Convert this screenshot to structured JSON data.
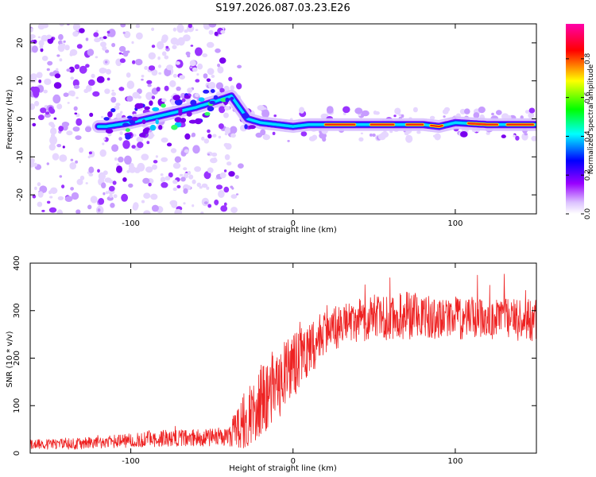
{
  "title": "S197.2026.087.03.23.E26",
  "chart_data": [
    {
      "type": "heatmap",
      "name": "spectrogram",
      "xlabel": "Height of straight line (km)",
      "ylabel": "Frequency (Hz)",
      "xlim": [
        -162,
        150
      ],
      "ylim": [
        -25,
        25
      ],
      "xticks": [
        -100,
        0,
        100
      ],
      "xtick_labels": [
        "-100",
        "0",
        "100"
      ],
      "yticks": [
        -20,
        -10,
        0,
        10,
        20
      ],
      "ytick_labels": [
        "-20",
        "-10",
        "0",
        "10",
        "20"
      ],
      "colorbar": {
        "label": "Normalized spectral amplitude",
        "range": [
          0,
          0.98
        ],
        "ticks": [
          0.0,
          0.2,
          0.4,
          0.6,
          0.8
        ],
        "tick_labels": [
          "0.0",
          "0.2",
          "0.4",
          "0.6",
          "0.8"
        ],
        "colors": [
          "#ffffff",
          "#9900ff",
          "#0000ff",
          "#00ffff",
          "#00ff00",
          "#ffff00",
          "#ff0000",
          "#ff00aa"
        ]
      },
      "ridge": {
        "description_x": [
          -115,
          -100,
          -80,
          -60,
          -45,
          -38,
          -33,
          -28,
          -20,
          -10,
          0,
          10,
          20,
          40,
          60,
          80,
          90,
          100,
          120,
          150
        ],
        "frequency_hz": [
          -2,
          -1,
          1,
          3,
          5,
          6,
          3,
          0,
          -1,
          -1.5,
          -2,
          -1.5,
          -1.5,
          -1.5,
          -1.5,
          -1.5,
          -2,
          -1,
          -1.5,
          -1.5
        ]
      }
    },
    {
      "type": "line",
      "name": "snr",
      "xlabel": "Height of straight line (km)",
      "ylabel": "SNR (10 * v/v)",
      "xlim": [
        -162,
        150
      ],
      "ylim": [
        0,
        400
      ],
      "xticks": [
        -100,
        0,
        100
      ],
      "xtick_labels": [
        "-100",
        "0",
        "100"
      ],
      "yticks": [
        0,
        100,
        200,
        300,
        400
      ],
      "ytick_labels": [
        "0",
        "100",
        "200",
        "300",
        "400"
      ],
      "color": "#ee2222",
      "series": [
        {
          "name": "SNR",
          "trend_x": [
            -162,
            -130,
            -110,
            -90,
            -60,
            -40,
            -30,
            -20,
            -10,
            0,
            10,
            20,
            30,
            50,
            70,
            100,
            150
          ],
          "trend_y": [
            18,
            20,
            25,
            30,
            32,
            35,
            70,
            110,
            150,
            180,
            220,
            255,
            270,
            285,
            290,
            285,
            280
          ],
          "spread_y": [
            10,
            12,
            14,
            18,
            18,
            20,
            60,
            75,
            80,
            70,
            60,
            45,
            45,
            50,
            50,
            45,
            45
          ]
        }
      ]
    }
  ]
}
